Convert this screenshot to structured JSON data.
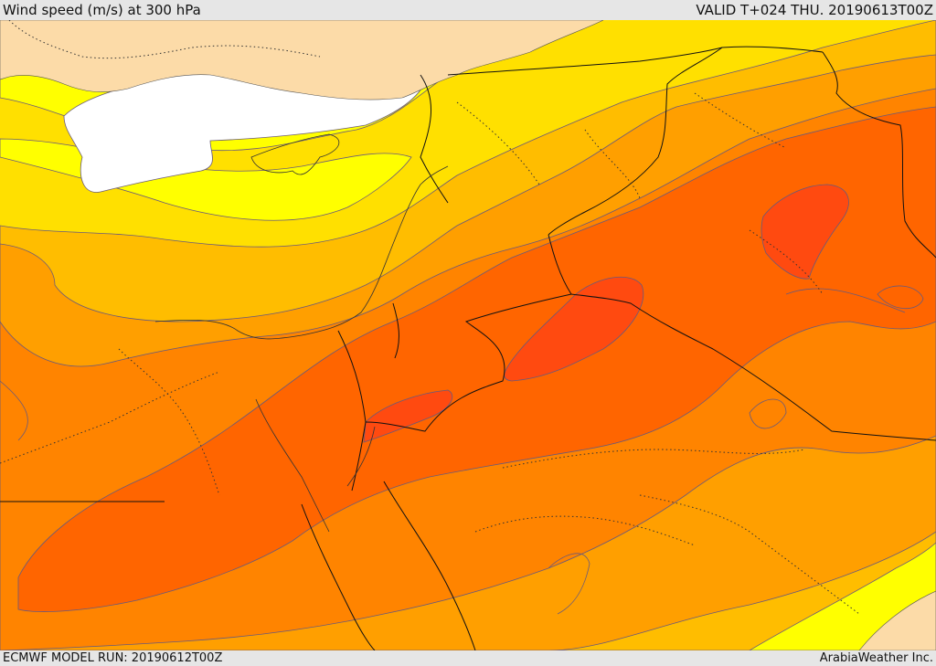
{
  "header": {
    "title": "Wind speed (m/s) at 300 hPa",
    "valid": "VALID T+024 THU. 20190613T00Z"
  },
  "footer": {
    "run": "ECMWF MODEL RUN: 20190612T00Z",
    "credit": "ArabiaWeather Inc."
  },
  "colors": {
    "land_low": "#fcdba8",
    "white_zone": "#ffffff",
    "yellow_bright": "#ffff00",
    "yellow": "#ffe000",
    "gold": "#ffbd00",
    "orange_light": "#ff9f00",
    "orange": "#ff8400",
    "orange_deep": "#ff6500",
    "red_orange": "#ff4a10",
    "contour": "#6a5a7a",
    "border": "#111111"
  }
}
